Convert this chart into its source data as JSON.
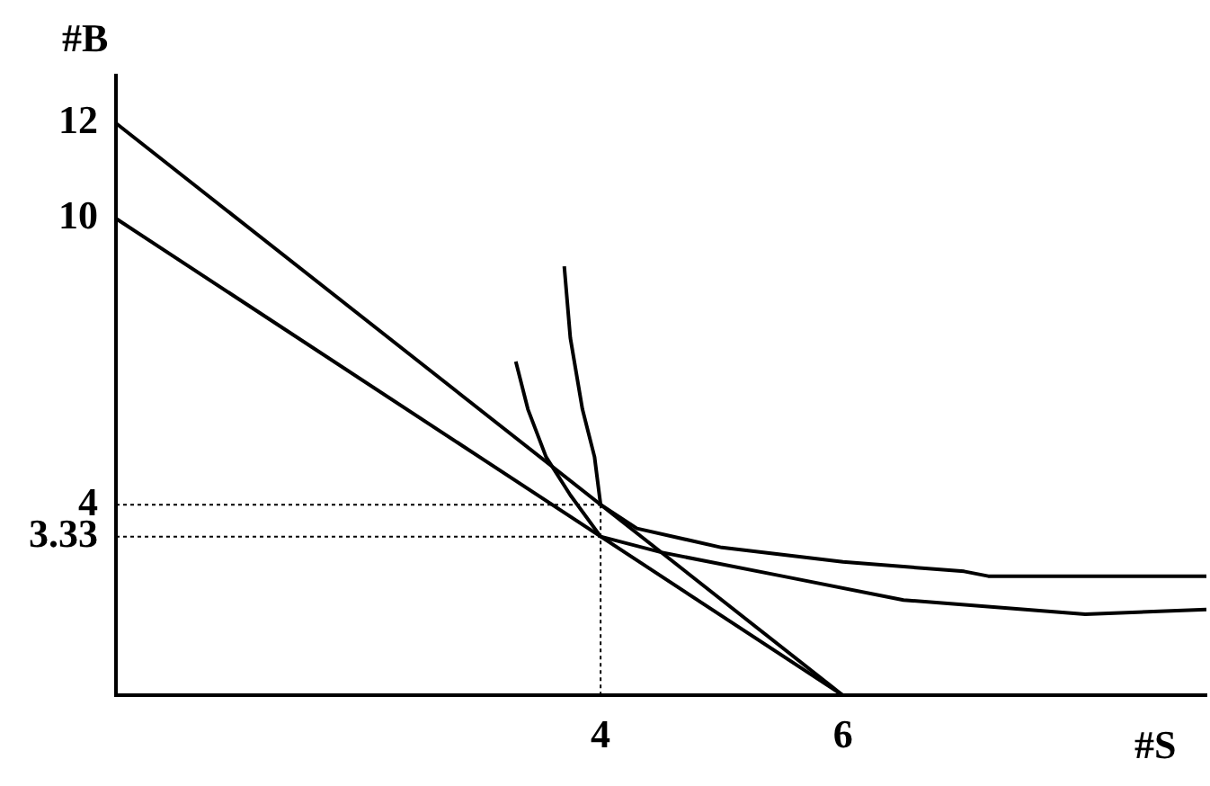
{
  "chart_data": {
    "type": "line",
    "xlabel": "#S",
    "ylabel": "#B",
    "series": [
      {
        "color": "#000000",
        "x": [
          0,
          6
        ],
        "values": [
          12,
          0
        ]
      },
      {
        "color": "#000000",
        "x": [
          0,
          6
        ],
        "values": [
          10,
          0
        ]
      },
      {
        "color": "#000000",
        "x": [
          3.7,
          3.75,
          3.85,
          3.95,
          4,
          4.3,
          5,
          6,
          7,
          7.2,
          8,
          9
        ],
        "values": [
          9.0,
          7.5,
          6,
          5,
          4,
          3.5,
          3.1,
          2.8,
          2.6,
          2.5,
          2.5,
          2.5
        ]
      },
      {
        "color": "#000000",
        "x": [
          3.3,
          3.4,
          3.55,
          3.75,
          4,
          4.5,
          5.5,
          6.5,
          8,
          9
        ],
        "values": [
          7,
          6,
          5,
          4.2,
          3.33,
          3.0,
          2.5,
          2.0,
          1.7,
          1.8
        ]
      }
    ],
    "xlim": [
      0,
      9
    ],
    "ylim": [
      0,
      13
    ],
    "xticks": [
      4,
      6
    ],
    "yticks": [
      3.33,
      4,
      10,
      12
    ],
    "ref_lines": [
      {
        "axis": "y",
        "value": 4,
        "line_style": "dotted",
        "color": "#000000"
      },
      {
        "axis": "y",
        "value": 3.33,
        "line_style": "dotted",
        "color": "#000000"
      },
      {
        "axis": "x",
        "value": 4,
        "line_style": "dotted",
        "color": "#000000"
      }
    ],
    "grid": false,
    "legend": false,
    "marker": "none",
    "line_style": "solid"
  }
}
